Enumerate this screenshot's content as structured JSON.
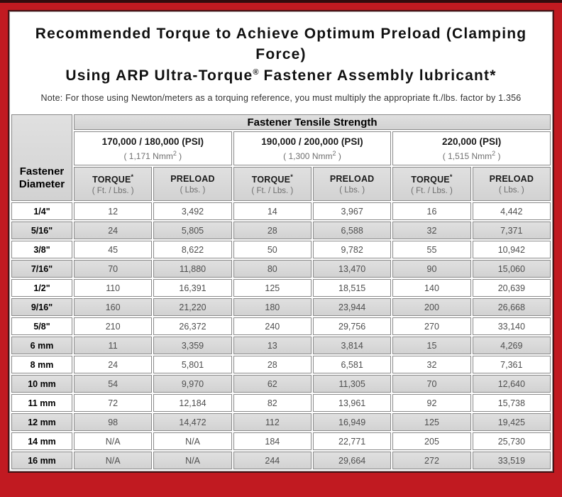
{
  "title": {
    "line1": "Recommended Torque to Achieve Optimum Preload (Clamping Force)",
    "line2_prefix": "Using ARP Ultra-Torque",
    "line2_sup": "®",
    "line2_suffix": " Fastener Assembly lubricant*",
    "note": "Note: For those using Newton/meters as a torquing reference, you must multiply the appropriate ft./lbs. factor by 1.356"
  },
  "table": {
    "corner": {
      "line1": "Fastener",
      "line2": "Diameter"
    },
    "tensile_header": "Fastener Tensile Strength",
    "groups": [
      {
        "psi": "170,000 / 180,000 (PSI)",
        "nmm_prefix": "( 1,171 Nmm",
        "nmm_sup": "2",
        "nmm_suffix": " )"
      },
      {
        "psi": "190,000 / 200,000 (PSI)",
        "nmm_prefix": "( 1,300 Nmm",
        "nmm_sup": "2",
        "nmm_suffix": " )"
      },
      {
        "psi": "220,000 (PSI)",
        "nmm_prefix": "( 1,515 Nmm",
        "nmm_sup": "2",
        "nmm_suffix": " )"
      }
    ],
    "col_headers": {
      "torque_label": "TORQUE",
      "torque_sup": "*",
      "torque_sub": "( Ft. / Lbs. )",
      "preload_label": "PRELOAD",
      "preload_sub": "( Lbs. )"
    },
    "rows": [
      {
        "d": "1/4\"",
        "v": [
          "12",
          "3,492",
          "14",
          "3,967",
          "16",
          "4,442"
        ]
      },
      {
        "d": "5/16\"",
        "v": [
          "24",
          "5,805",
          "28",
          "6,588",
          "32",
          "7,371"
        ]
      },
      {
        "d": "3/8\"",
        "v": [
          "45",
          "8,622",
          "50",
          "9,782",
          "55",
          "10,942"
        ]
      },
      {
        "d": "7/16\"",
        "v": [
          "70",
          "11,880",
          "80",
          "13,470",
          "90",
          "15,060"
        ]
      },
      {
        "d": "1/2\"",
        "v": [
          "110",
          "16,391",
          "125",
          "18,515",
          "140",
          "20,639"
        ]
      },
      {
        "d": "9/16\"",
        "v": [
          "160",
          "21,220",
          "180",
          "23,944",
          "200",
          "26,668"
        ]
      },
      {
        "d": "5/8\"",
        "v": [
          "210",
          "26,372",
          "240",
          "29,756",
          "270",
          "33,140"
        ]
      },
      {
        "d": "6 mm",
        "v": [
          "11",
          "3,359",
          "13",
          "3,814",
          "15",
          "4,269"
        ]
      },
      {
        "d": "8 mm",
        "v": [
          "24",
          "5,801",
          "28",
          "6,581",
          "32",
          "7,361"
        ]
      },
      {
        "d": "10 mm",
        "v": [
          "54",
          "9,970",
          "62",
          "11,305",
          "70",
          "12,640"
        ]
      },
      {
        "d": "11 mm",
        "v": [
          "72",
          "12,184",
          "82",
          "13,961",
          "92",
          "15,738"
        ]
      },
      {
        "d": "12 mm",
        "v": [
          "98",
          "14,472",
          "112",
          "16,949",
          "125",
          "19,425"
        ]
      },
      {
        "d": "14 mm",
        "v": [
          "N/A",
          "N/A",
          "184",
          "22,771",
          "205",
          "25,730"
        ]
      },
      {
        "d": "16 mm",
        "v": [
          "N/A",
          "N/A",
          "244",
          "29,664",
          "272",
          "33,519"
        ]
      }
    ]
  },
  "colors": {
    "frame_red": "#c11a21",
    "top_band": "#330c0e",
    "content_outline": "#4e1114",
    "cell_border": "#8a8a8a",
    "gray_cell": "#d9d9d9"
  }
}
